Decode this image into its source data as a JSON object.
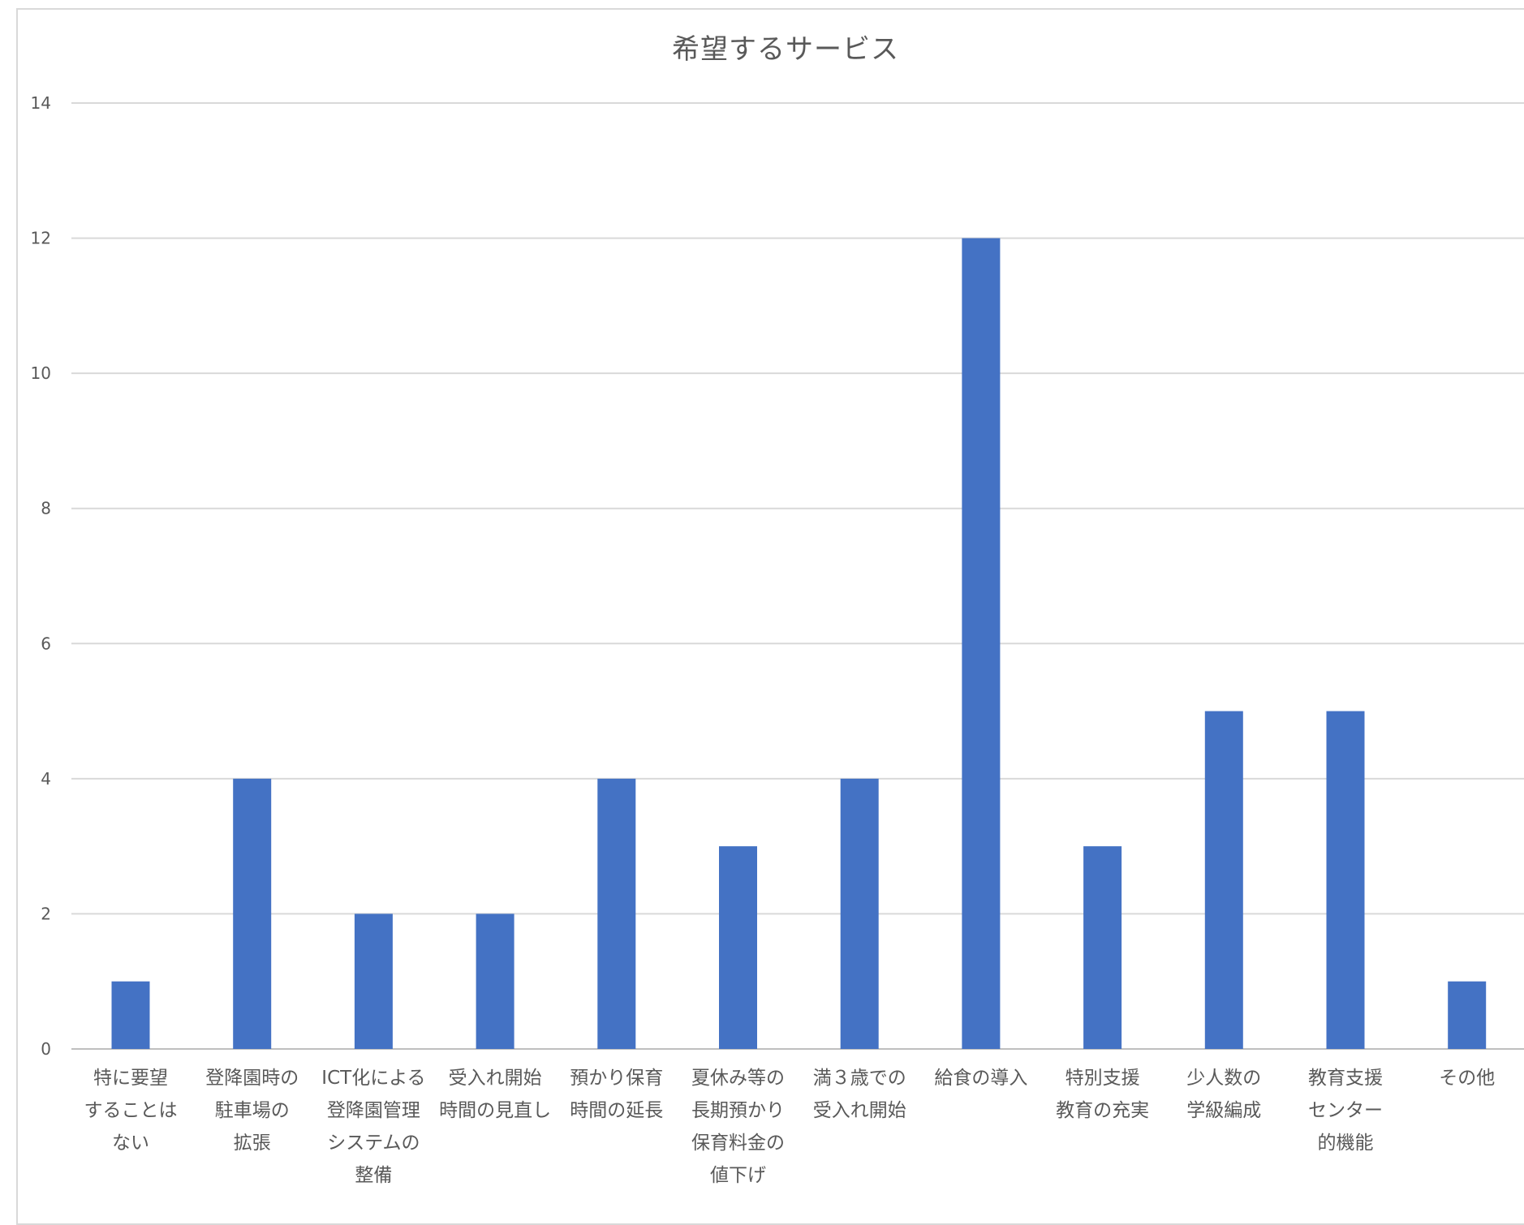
{
  "chart_data": {
    "type": "bar",
    "title": "希望するサービス",
    "xlabel": "",
    "ylabel": "",
    "ylim": [
      0,
      14
    ],
    "yticks": [
      0,
      2,
      4,
      6,
      8,
      10,
      12,
      14
    ],
    "grid": true,
    "legend": "none",
    "bar_color": "#4472C4",
    "categories": [
      [
        "特に要望",
        "することは",
        "ない"
      ],
      [
        "登降園時の",
        "駐車場の",
        "拡張"
      ],
      [
        "ICT化による",
        "登降園管理",
        "システムの",
        "整備"
      ],
      [
        "受入れ開始",
        "時間の見直し"
      ],
      [
        "預かり保育",
        "時間の延長"
      ],
      [
        "夏休み等の",
        "長期預かり",
        "保育料金の",
        "値下げ"
      ],
      [
        "満３歳での",
        "受入れ開始"
      ],
      [
        "給食の導入"
      ],
      [
        "特別支援",
        "教育の充実"
      ],
      [
        "少人数の",
        "学級編成"
      ],
      [
        "教育支援",
        "センター",
        "的機能"
      ],
      [
        "その他"
      ]
    ],
    "values": [
      1,
      4,
      2,
      2,
      4,
      3,
      4,
      12,
      3,
      5,
      5,
      1
    ]
  }
}
